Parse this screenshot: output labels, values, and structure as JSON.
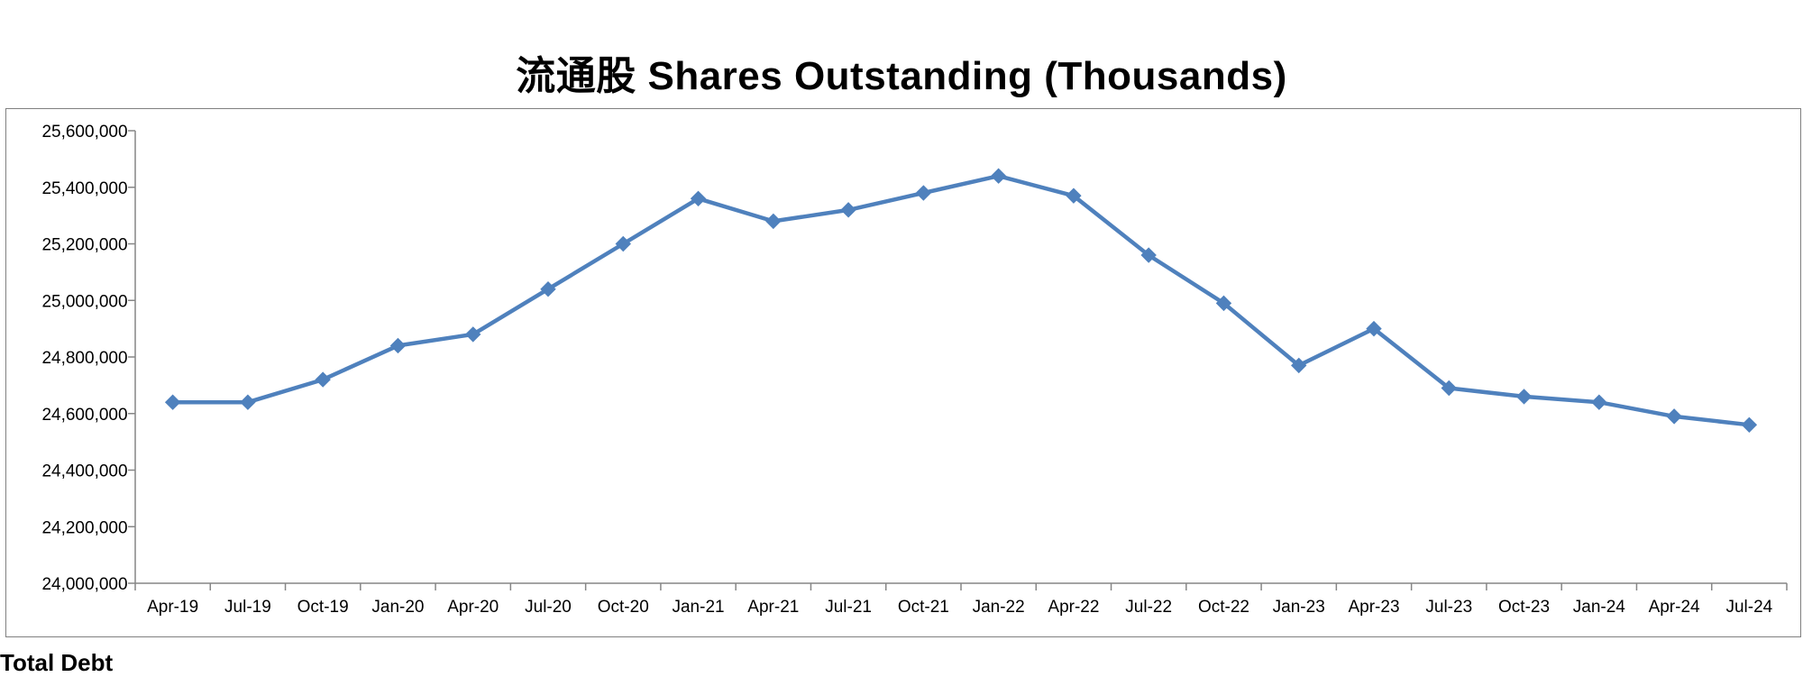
{
  "chart_data": {
    "type": "line",
    "title": "流通股 Shares Outstanding (Thousands)",
    "xlabel": "",
    "ylabel": "",
    "categories": [
      "Apr-19",
      "Jul-19",
      "Oct-19",
      "Jan-20",
      "Apr-20",
      "Jul-20",
      "Oct-20",
      "Jan-21",
      "Apr-21",
      "Jul-21",
      "Oct-21",
      "Jan-22",
      "Apr-22",
      "Jul-22",
      "Oct-22",
      "Jan-23",
      "Apr-23",
      "Jul-23",
      "Oct-23",
      "Jan-24",
      "Apr-24",
      "Jul-24"
    ],
    "ylim": [
      24000000,
      25600000
    ],
    "yticks": [
      24000000,
      24200000,
      24400000,
      24600000,
      24800000,
      25000000,
      25200000,
      25400000,
      25600000
    ],
    "ytick_labels": [
      "24,000,000",
      "24,200,000",
      "24,400,000",
      "24,600,000",
      "24,800,000",
      "25,000,000",
      "25,200,000",
      "25,400,000",
      "25,600,000"
    ],
    "grid": false,
    "legend": "none",
    "marker": "diamond",
    "color": "#4F81BD",
    "series": [
      {
        "values": [
          24640000,
          24640000,
          24720000,
          24840000,
          24880000,
          25040000,
          25200000,
          25360000,
          25280000,
          25320000,
          25380000,
          25440000,
          25370000,
          25160000,
          24990000,
          24770000,
          24900000,
          24690000,
          24660000,
          24640000,
          24590000,
          24560000
        ]
      }
    ]
  },
  "footer": {
    "label": "Total Debt"
  }
}
